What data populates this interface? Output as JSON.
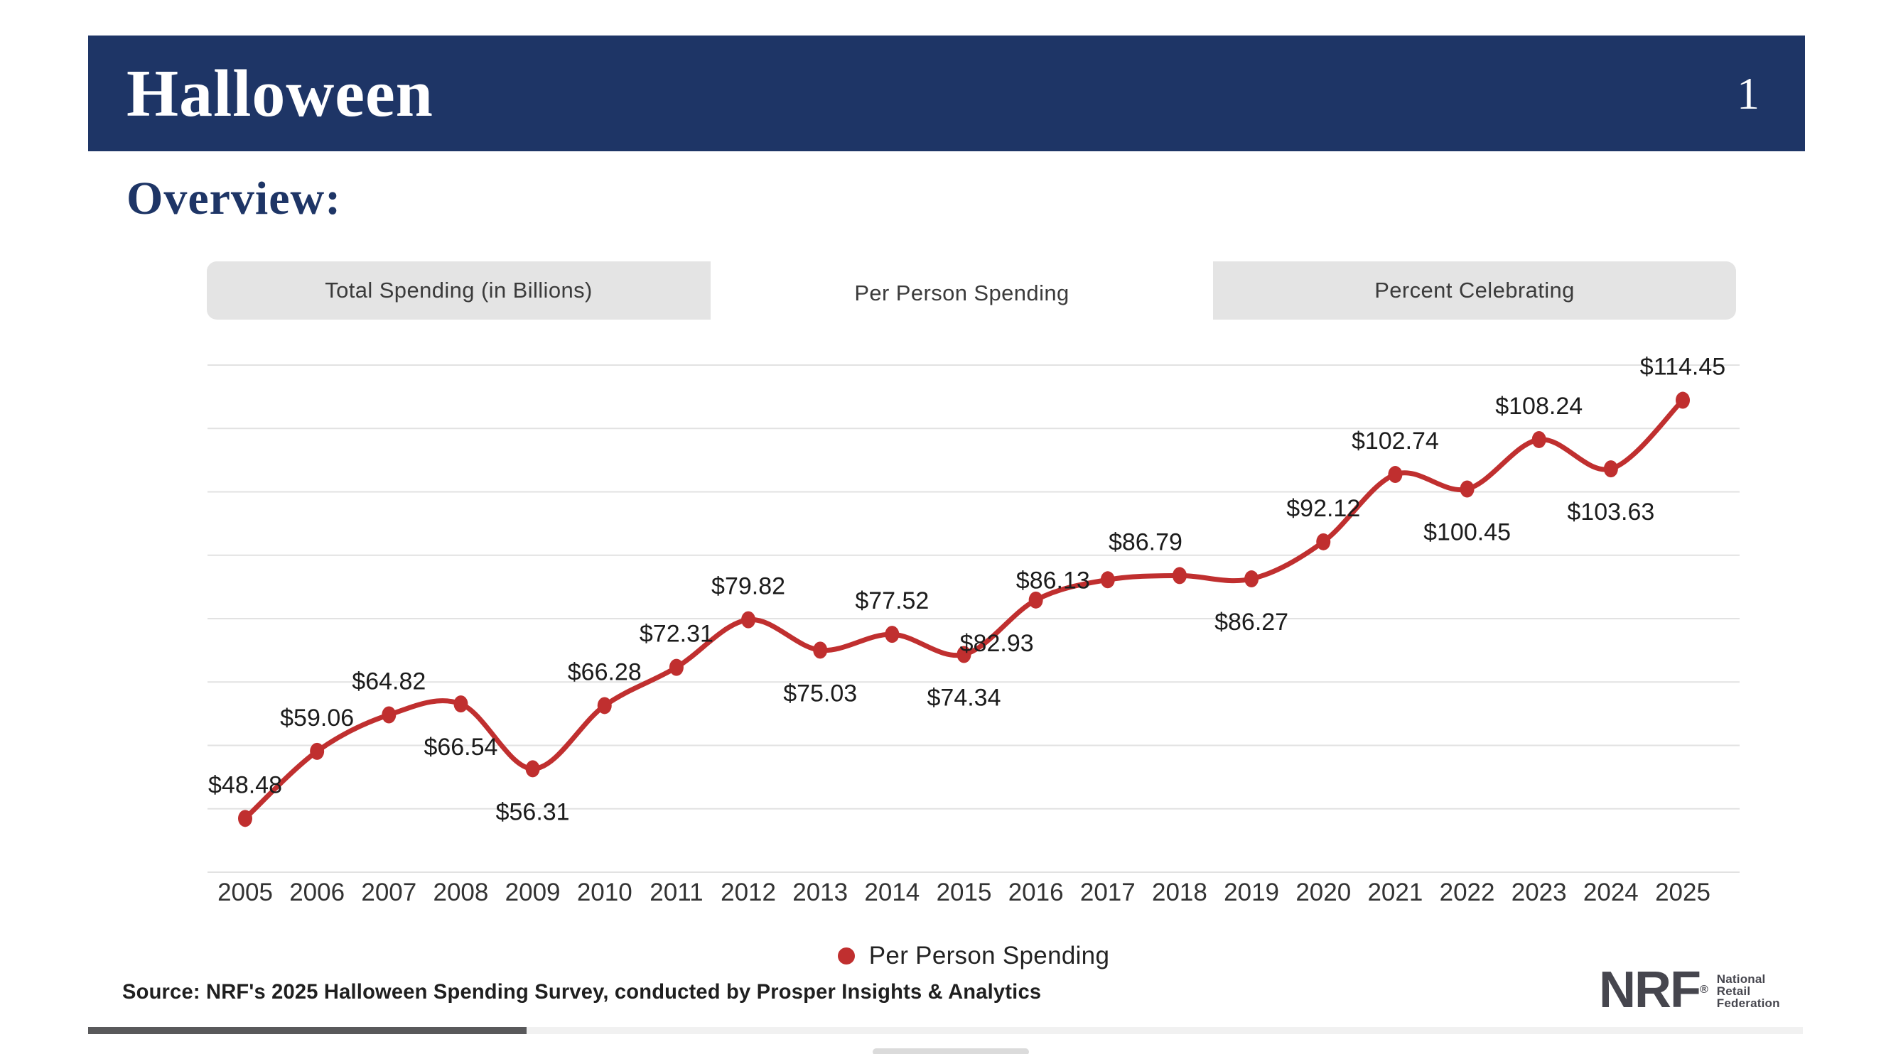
{
  "page": {
    "title": "Halloween",
    "page_number": "1",
    "section_heading": "Overview:"
  },
  "tabs": [
    {
      "label": "Total Spending (in Billions)",
      "active": false
    },
    {
      "label": "Per Person Spending",
      "active": true
    },
    {
      "label": "Percent Celebrating",
      "active": false
    }
  ],
  "chart_data": {
    "type": "line",
    "title": "Per Person Spending",
    "categories": [
      "2005",
      "2006",
      "2007",
      "2008",
      "2009",
      "2010",
      "2011",
      "2012",
      "2013",
      "2014",
      "2015",
      "2016",
      "2017",
      "2018",
      "2019",
      "2020",
      "2021",
      "2022",
      "2023",
      "2024",
      "2025"
    ],
    "series": [
      {
        "name": "Per Person Spending",
        "values": [
          48.48,
          59.06,
          64.82,
          66.54,
          56.31,
          66.28,
          72.31,
          79.82,
          75.03,
          77.52,
          74.34,
          82.93,
          86.13,
          86.79,
          86.27,
          92.12,
          102.74,
          100.45,
          108.24,
          103.63,
          114.45
        ]
      }
    ],
    "data_labels": [
      "$48.48",
      "$59.06",
      "$64.82",
      "$66.54",
      "$56.31",
      "$66.28",
      "$72.31",
      "$79.82",
      "$75.03",
      "$77.52",
      "$74.34",
      "$82.93",
      "$86.13",
      "$86.79",
      "$86.27",
      "$92.12",
      "$102.74",
      "$100.45",
      "$108.24",
      "$103.63",
      "$114.45"
    ],
    "label_placements": [
      "above",
      "above",
      "above",
      "below",
      "below",
      "above",
      "above",
      "above",
      "below",
      "above",
      "below",
      "below-left",
      "left",
      "above-left",
      "below",
      "above",
      "above",
      "below",
      "above",
      "below",
      "above"
    ],
    "xlabel": "",
    "ylabel": "",
    "ylim": [
      40,
      125.6
    ],
    "gridline_step": 10,
    "grid": true,
    "legend_position": "bottom"
  },
  "legend": {
    "label": "Per Person Spending"
  },
  "source_note": "Source: NRF's 2025 Halloween Spending Survey, conducted by Prosper Insights & Analytics",
  "logo": {
    "acronym": "NRF",
    "registered": "®",
    "lines": [
      "National",
      "Retail",
      "Federation"
    ]
  },
  "colors": {
    "header_navy": "#1e3566",
    "line_red": "#c02f2f",
    "gridline": "#e2e2e2",
    "tab_gray": "#e4e4e4",
    "label_text": "#1c1c1c",
    "axis_text": "#333333"
  }
}
